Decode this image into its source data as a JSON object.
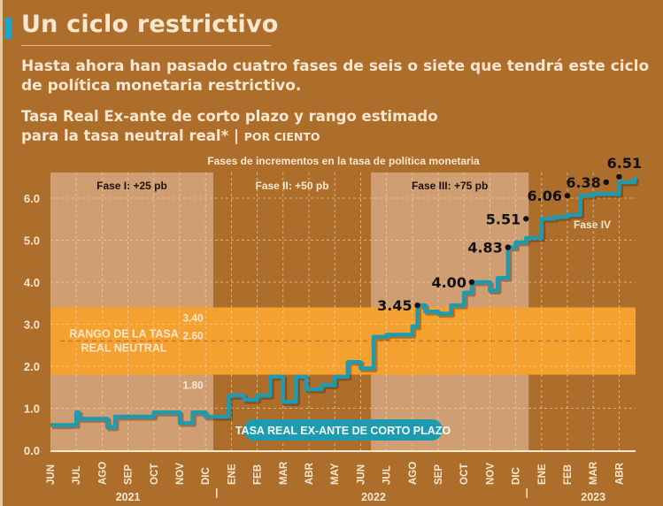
{
  "header": {
    "title": "Un ciclo restrictivo",
    "subtitle": "Hasta ahora han pasado cuatro fases de seis o siete que tendrá este ciclo de política monetaria restrictivo.",
    "chart_title_line1": "Tasa Real Ex-ante de corto plazo y rango estimado",
    "chart_title_line2": "para la tasa neutral real* | ",
    "chart_title_unit": "POR CIENTO"
  },
  "colors": {
    "background": "#ad6e2c",
    "phase_light": "#cf9e72",
    "neutral_band": "#f5a12f",
    "line": "#1e9bb0",
    "text_light": "#fde7cf"
  },
  "chart_data": {
    "type": "line",
    "title": "Tasa Real Ex-ante de corto plazo y rango estimado para la tasa neutral real*",
    "unit": "POR CIENTO",
    "top_caption": "Fases de incrementos en la tasa de política monetaria",
    "xlabel": "",
    "ylabel": "",
    "ylim": [
      0,
      6.6
    ],
    "yticks": [
      "0.0",
      "1.0",
      "2.0",
      "3.0",
      "4.0",
      "5.0",
      "6.0"
    ],
    "grid": true,
    "x_month_labels": [
      "JUN",
      "JUL",
      "AGO",
      "SEP",
      "OCT",
      "NOV",
      "DIC",
      "ENE",
      "FEB",
      "MAR",
      "ABR",
      "MAY",
      "JUN",
      "JUL",
      "AGO",
      "SEP",
      "OCT",
      "NOV",
      "DIC",
      "ENE",
      "FEB",
      "MAR",
      "ABR"
    ],
    "x_year_labels": [
      {
        "label": "2021",
        "center_month_index": 3
      },
      {
        "label": "2022",
        "center_month_index": 12.5
      },
      {
        "label": "2023",
        "center_month_index": 21
      }
    ],
    "year_separators_month_index": [
      6.5,
      18.5
    ],
    "phases": [
      {
        "label": "Fase   I: +25 pb",
        "start": 0,
        "end": 6.3,
        "shade": "light"
      },
      {
        "label": "Fase   II: +50 pb",
        "start": 6.3,
        "end": 12.4,
        "shade": "dark"
      },
      {
        "label": "Fase   III: +75 pb",
        "start": 12.4,
        "end": 18.5,
        "shade": "light"
      },
      {
        "label": "Fase IV",
        "start": 18.5,
        "end": 22.6,
        "shade": "dark"
      }
    ],
    "neutral_range": {
      "label_line1": "RANGO DE LA TASA",
      "label_line2": "REAL NEUTRAL",
      "upper": 3.4,
      "mid": 2.6,
      "lower": 1.8,
      "upper_label": "3.40",
      "mid_label": "2.60",
      "lower_label": "1.80"
    },
    "series": [
      {
        "name": "TASA REAL EX-ANTE DE CORTO PLAZO",
        "x": [
          0,
          1.0,
          1.1,
          2.0,
          2.2,
          2.5,
          3.0,
          4.0,
          4.7,
          5.0,
          5.5,
          6.0,
          6.5,
          6.9,
          7.5,
          8.0,
          8.5,
          9.0,
          9.5,
          9.9,
          10.5,
          11.0,
          11.5,
          12.0,
          12.5,
          13.0,
          14.0,
          14.2,
          14.5,
          15.0,
          15.5,
          16.0,
          16.3,
          17.0,
          17.3,
          17.7,
          18.0,
          18.4,
          19.0,
          19.5,
          20.0,
          20.5,
          21.0,
          22.0,
          22.6
        ],
        "values": [
          0.6,
          0.9,
          0.75,
          0.75,
          0.55,
          0.8,
          0.8,
          0.9,
          0.9,
          0.65,
          0.9,
          0.8,
          0.8,
          1.3,
          1.2,
          1.3,
          1.75,
          1.15,
          1.75,
          1.45,
          1.55,
          1.75,
          2.1,
          1.95,
          2.7,
          2.75,
          2.95,
          3.45,
          3.3,
          3.25,
          3.45,
          3.75,
          4.0,
          3.8,
          4.1,
          4.83,
          4.95,
          5.05,
          5.51,
          5.55,
          5.6,
          6.06,
          6.1,
          6.38,
          6.51
        ]
      }
    ],
    "annotations": [
      {
        "label": "3.45",
        "x": 14.2,
        "value": 3.45
      },
      {
        "label": "4.00",
        "x": 16.3,
        "value": 4.0
      },
      {
        "label": "4.83",
        "x": 17.7,
        "value": 4.83
      },
      {
        "label": "5.51",
        "x": 18.4,
        "value": 5.51
      },
      {
        "label": "6.06",
        "x": 20.0,
        "value": 6.06
      },
      {
        "label": "6.38",
        "x": 21.5,
        "value": 6.38
      },
      {
        "label": "6.51",
        "x": 22.0,
        "value": 6.51
      }
    ]
  }
}
